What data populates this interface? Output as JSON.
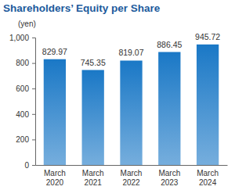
{
  "chart_data": {
    "type": "bar",
    "title": "Shareholders’ Equity per Share",
    "ylabel": "(yen)",
    "categories": [
      "March 2020",
      "March 2021",
      "March 2022",
      "March 2023",
      "March 2024"
    ],
    "values": [
      829.97,
      745.35,
      819.07,
      886.45,
      945.72
    ],
    "color": "#1a78c6",
    "ylim": [
      0,
      1000
    ],
    "yticks": [
      0,
      200,
      400,
      600,
      800,
      {
        "value": 1000,
        "label": "1,000"
      }
    ],
    "grid": false,
    "data_labels": true
  }
}
